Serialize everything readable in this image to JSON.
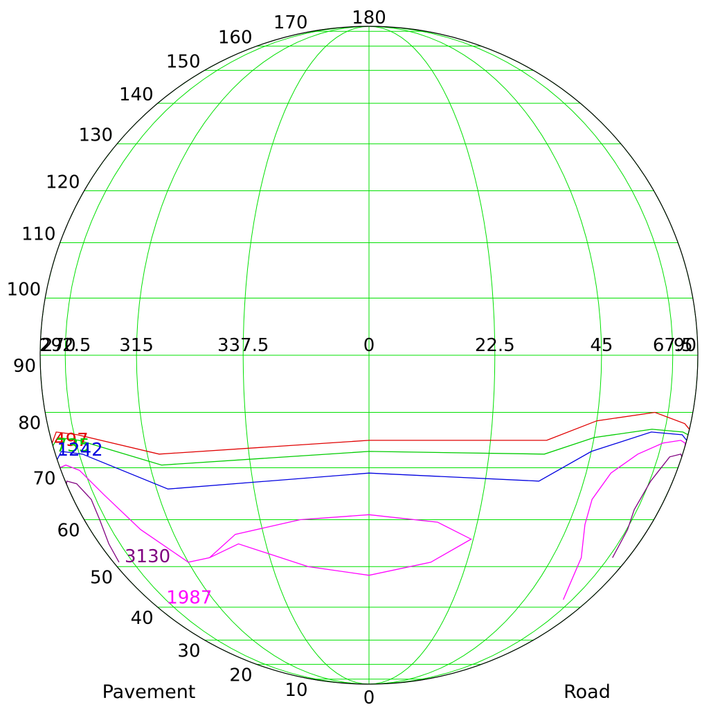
{
  "chart_data": {
    "type": "polar-contour",
    "title": "",
    "grid": true,
    "azimuth_labels": [
      "270",
      "292.5",
      "315",
      "337.5",
      "0",
      "22.5",
      "45",
      "67.5",
      "90"
    ],
    "upper_labels": [
      "180",
      "170",
      "160",
      "150",
      "140",
      "130",
      "120",
      "110",
      "100"
    ],
    "lower_labels": [
      "90",
      "80",
      "70",
      "60",
      "50",
      "40",
      "30",
      "20",
      "10",
      "0"
    ],
    "corner_labels": {
      "left": "Pavement",
      "right": "Road"
    },
    "grid_color": "#00e000",
    "azimuth_ticks": [
      -90,
      -67.5,
      -45,
      -22.5,
      0,
      22.5,
      45,
      67.5,
      90
    ],
    "series": [
      {
        "name": "497",
        "color": "#e00000",
        "label_pos": [
          -85,
          74
        ],
        "points": [
          [
            -90,
            74.5
          ],
          [
            -78,
            76.5
          ],
          [
            -66,
            76
          ],
          [
            -42,
            72.5
          ],
          [
            0,
            75
          ],
          [
            34,
            75
          ],
          [
            45,
            78.5
          ],
          [
            62,
            80
          ],
          [
            79,
            78
          ],
          [
            90,
            77
          ]
        ]
      },
      {
        "name": "735",
        "color": "#00cc00",
        "label_pos": [
          -85,
          73
        ],
        "points": [
          [
            -90,
            74
          ],
          [
            -78,
            75.5
          ],
          [
            -66,
            75
          ],
          [
            -42,
            70.5
          ],
          [
            0,
            73
          ],
          [
            34,
            72.5
          ],
          [
            45,
            75.5
          ],
          [
            62,
            77
          ],
          [
            79,
            76.5
          ],
          [
            90,
            76
          ]
        ]
      },
      {
        "name": "1242",
        "color": "#0000e0",
        "label_pos": [
          -85,
          72.2
        ],
        "points": [
          [
            -90,
            71.5
          ],
          [
            -78,
            73
          ],
          [
            -66,
            72.5
          ],
          [
            -42,
            66
          ],
          [
            0,
            69
          ],
          [
            34,
            67.5
          ],
          [
            45,
            73
          ],
          [
            62,
            76.5
          ],
          [
            79,
            76
          ],
          [
            90,
            75
          ]
        ]
      },
      {
        "name": "1987",
        "color": "#ff00ff",
        "label_pos": [
          -70,
          41
        ],
        "segments": [
          [
            [
              -90,
              70
            ],
            [
              -78,
              70.5
            ],
            [
              -70,
              69.5
            ],
            [
              -63,
              65
            ],
            [
              -55,
              58
            ],
            [
              -45,
              51
            ],
            [
              -38,
              52
            ],
            [
              -29,
              57
            ],
            [
              -14,
              60
            ],
            [
              0,
              61
            ],
            [
              14,
              59.5
            ],
            [
              22,
              56
            ],
            [
              14,
              51
            ],
            [
              0,
              48
            ],
            [
              -14,
              50
            ],
            [
              -29,
              55
            ],
            [
              -38,
              52
            ]
          ],
          [
            [
              62,
              42
            ],
            [
              55,
              52
            ],
            [
              50,
              59
            ],
            [
              49,
              64
            ],
            [
              52,
              69
            ],
            [
              59,
              72.5
            ],
            [
              68,
              74.5
            ],
            [
              79,
              75
            ],
            [
              86,
              74.5
            ],
            [
              90,
              74
            ]
          ]
        ]
      },
      {
        "name": "3130",
        "color": "#800080",
        "label_pos": [
          -73,
          51
        ],
        "points": [
          [
            -88,
            67
          ],
          [
            -84,
            67.5
          ],
          [
            -75,
            67
          ],
          [
            -70,
            64
          ],
          [
            -71,
            60
          ],
          [
            -75,
            55
          ],
          [
            -78,
            51
          ]
        ],
        "extra": [
          [
            70,
            52
          ],
          [
            68,
            58
          ],
          [
            66,
            62
          ],
          [
            68,
            67.5
          ],
          [
            74,
            72
          ],
          [
            84,
            72.5
          ],
          [
            90,
            72
          ]
        ]
      }
    ]
  }
}
